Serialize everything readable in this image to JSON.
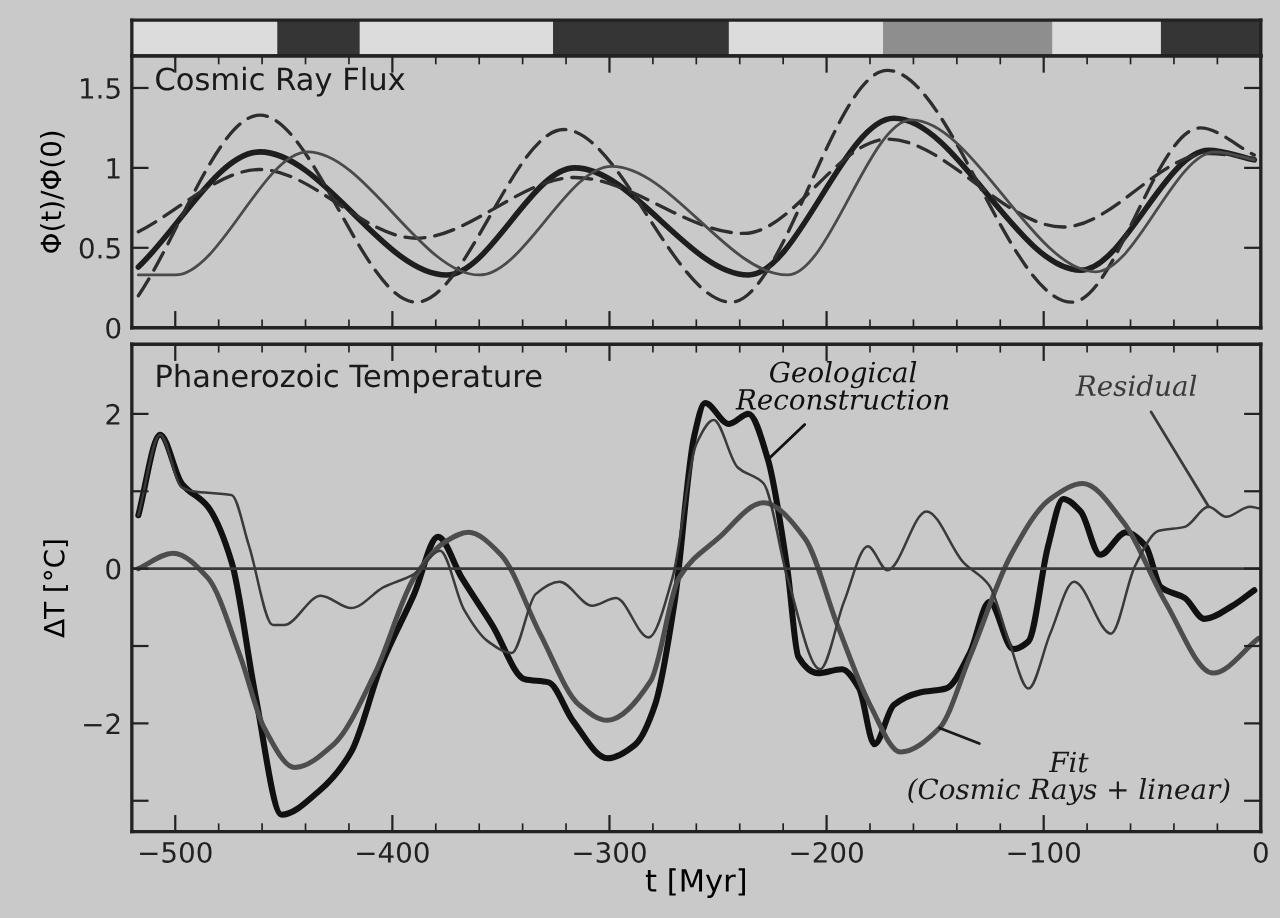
{
  "chart_data": [
    {
      "type": "bar",
      "orientation": "horizontal",
      "categories": [
        null
      ],
      "xlim": [
        -520,
        0
      ],
      "tick_labels": false,
      "series": [
        {
          "color": "#dcdcdc",
          "base": [
            -520
          ],
          "values": [
            67
          ]
        },
        {
          "color": "#353535",
          "base": [
            -453
          ],
          "values": [
            38
          ]
        },
        {
          "color": "#dcdcdc",
          "base": [
            -415
          ],
          "values": [
            89
          ]
        },
        {
          "color": "#353535",
          "base": [
            -326
          ],
          "values": [
            81
          ]
        },
        {
          "color": "#dcdcdc",
          "base": [
            -245
          ],
          "values": [
            71
          ]
        },
        {
          "color": "#8e8e8e",
          "base": [
            -174
          ],
          "values": [
            78
          ]
        },
        {
          "color": "#dcdcdc",
          "base": [
            -96
          ],
          "values": [
            50
          ]
        },
        {
          "color": "#353535",
          "base": [
            -46
          ],
          "values": [
            46
          ]
        }
      ]
    },
    {
      "type": "line",
      "title": "Cosmic Ray Flux",
      "ylabel": "Φ(t)/Φ(0)",
      "xlim": [
        -520,
        0
      ],
      "ylim": [
        0,
        1.7
      ],
      "xticks": [
        -500,
        -400,
        -300,
        -200,
        -100,
        0
      ],
      "yticks": [
        0,
        0.5,
        1,
        1.5
      ],
      "tick_labels": "y",
      "grid": false,
      "legend": false,
      "series": [
        {
          "color": "#1e1e1e",
          "line_style": "solid",
          "x": [
            -517,
            -461,
            -375,
            -316,
            -236,
            -169,
            -83,
            -24,
            -3
          ],
          "values": [
            0.38,
            1.1,
            0.33,
            1.0,
            0.33,
            1.31,
            0.36,
            1.11,
            1.05
          ]
        },
        {
          "color": "#2e2e2e",
          "line_style": "dashed",
          "x": [
            -517,
            -461,
            -389,
            -321,
            -244,
            -172,
            -87,
            -28,
            -3
          ],
          "values": [
            0.2,
            1.33,
            0.16,
            1.24,
            0.16,
            1.61,
            0.16,
            1.25,
            1.08
          ]
        },
        {
          "color": "#2e2e2e",
          "line_style": "dashed",
          "x": [
            -517,
            -461,
            -389,
            -316,
            -238,
            -172,
            -91,
            -24,
            -3
          ],
          "values": [
            0.6,
            0.99,
            0.56,
            0.94,
            0.59,
            1.18,
            0.63,
            1.09,
            1.06
          ]
        },
        {
          "color": "#4a4a4a",
          "line_style": "solid",
          "x": [
            -517,
            -500,
            -439,
            -360,
            -299,
            -218,
            -161,
            -76,
            -21,
            -3
          ],
          "values": [
            0.33,
            0.33,
            1.1,
            0.33,
            1.01,
            0.33,
            1.3,
            0.35,
            1.1,
            1.05
          ]
        }
      ]
    },
    {
      "type": "line",
      "title": "Phanerozoic Temperature",
      "xlabel": "t [Myr]",
      "ylabel": "ΔT [°C]",
      "xlim": [
        -520,
        0
      ],
      "ylim": [
        -3.4,
        2.9
      ],
      "xticks": [
        {
          "value": -500,
          "label": "−500"
        },
        {
          "value": -400,
          "label": "−400"
        },
        {
          "value": -300,
          "label": "−300"
        },
        {
          "value": -200,
          "label": "−200"
        },
        {
          "value": -100,
          "label": "−100"
        },
        0
      ],
      "yticks": [
        {
          "value": -3,
          "label": null
        },
        {
          "value": -2,
          "label": "−2"
        },
        {
          "value": -1,
          "label": null
        },
        0,
        {
          "value": 1,
          "label": null
        },
        2
      ],
      "grid": false,
      "legend": false,
      "annotations": [
        {
          "text": "Fit\n(Cosmic Rays + linear)",
          "x": -148,
          "y": -2.06
        }
      ],
      "ref_lines": [
        {
          "axis": "y",
          "value": 0,
          "color": "#3a3a3a",
          "line_style": "solid"
        }
      ],
      "series": [
        {
          "name": "Geological\nReconstruction",
          "color": "#111111",
          "x": [
            -517,
            -507,
            -497,
            -485,
            -474,
            -463,
            -451,
            -434,
            -419,
            -405,
            -390,
            -379,
            -368,
            -354,
            -339,
            -328,
            -317,
            -301,
            -288,
            -279,
            -270,
            -261,
            -256,
            -245,
            -236,
            -227,
            -218,
            -213,
            -204,
            -193,
            -185,
            -178,
            -169,
            -157,
            -145,
            -134,
            -125,
            -114,
            -107,
            -98,
            -91,
            -83,
            -74,
            -62,
            -53,
            -46,
            -35,
            -26,
            -13,
            -3
          ],
          "values": [
            0.69,
            1.73,
            1.1,
            0.8,
            0.08,
            -1.65,
            -3.18,
            -2.88,
            -2.37,
            -1.24,
            -0.33,
            0.41,
            -0.12,
            -0.73,
            -1.43,
            -1.47,
            -1.96,
            -2.45,
            -2.27,
            -1.76,
            -0.43,
            1.71,
            2.14,
            1.87,
            2.0,
            1.41,
            -0.02,
            -1.14,
            -1.35,
            -1.3,
            -1.55,
            -2.27,
            -1.76,
            -1.6,
            -1.55,
            -1.09,
            -0.43,
            -1.04,
            -0.94,
            0.29,
            0.9,
            0.74,
            0.18,
            0.47,
            0.29,
            -0.24,
            -0.38,
            -0.65,
            -0.48,
            -0.28
          ]
        },
        {
          "color": "#4d4d4d",
          "x": [
            -517,
            -501,
            -485,
            -470,
            -459,
            -445,
            -427,
            -408,
            -390,
            -376,
            -365,
            -350,
            -332,
            -314,
            -301,
            -281,
            -268,
            -250,
            -229,
            -210,
            -195,
            -180,
            -166,
            -148,
            -134,
            -115,
            -97,
            -82,
            -63,
            -44,
            -22,
            -1
          ],
          "values": [
            0,
            0.2,
            -0.12,
            -1.14,
            -2.06,
            -2.57,
            -2.27,
            -1.35,
            -0.12,
            0.34,
            0.47,
            0.18,
            -0.84,
            -1.76,
            -1.96,
            -1.45,
            -0.12,
            0.39,
            0.85,
            0.39,
            -0.73,
            -1.76,
            -2.37,
            -2.06,
            -1.14,
            0.18,
            0.9,
            1.1,
            0.59,
            -0.43,
            -1.35,
            -0.9
          ]
        },
        {
          "name": "Residual",
          "color": "#3a3a3a",
          "x": [
            -517,
            -507,
            -497,
            -492,
            -474,
            -466,
            -455,
            -450,
            -433,
            -419,
            -404,
            -390,
            -378,
            -367,
            -356,
            -345,
            -334,
            -323,
            -308,
            -297,
            -282,
            -271,
            -260,
            -252,
            -241,
            -229,
            -218,
            -203,
            -192,
            -181,
            -172,
            -154,
            -137,
            -125,
            -116,
            -107,
            -97,
            -86,
            -69,
            -58,
            -47,
            -35,
            -24,
            -16,
            -5,
            -1
          ],
          "values": [
            0.69,
            1.73,
            1.05,
            1.0,
            0.95,
            0.29,
            -0.73,
            -0.73,
            -0.35,
            -0.51,
            -0.24,
            -0.07,
            0.23,
            -0.53,
            -0.94,
            -1.09,
            -0.33,
            -0.17,
            -0.48,
            -0.38,
            -0.89,
            -0.12,
            1.61,
            1.92,
            1.31,
            1.1,
            -0.12,
            -1.3,
            -0.43,
            0.29,
            -0.02,
            0.74,
            0.08,
            -0.22,
            -0.94,
            -1.55,
            -0.84,
            -0.17,
            -0.84,
            0.03,
            0.49,
            0.54,
            0.8,
            0.67,
            0.8,
            0.78
          ]
        }
      ]
    }
  ]
}
